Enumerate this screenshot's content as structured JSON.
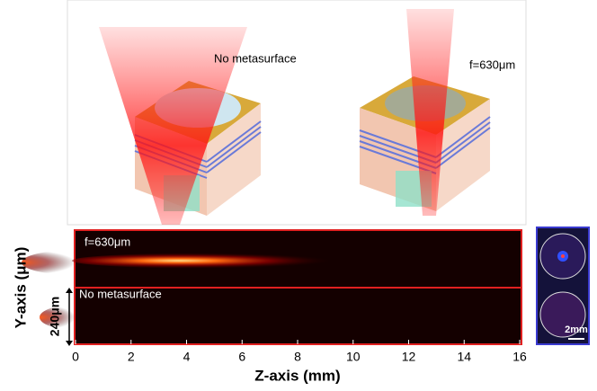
{
  "chart_data": {
    "type": "heatmap",
    "illustration_labels": [
      "No metasurface",
      "f=630μm"
    ],
    "panel_labels": [
      "f=630μm",
      "No metasurface"
    ],
    "xlabel": "Z-axis (mm)",
    "ylabel": "Y-axis (μm)",
    "scale_label": "240μm",
    "inset_scale_label": "2mm",
    "xlim": [
      0,
      16
    ],
    "xticks": [
      0,
      2,
      4,
      6,
      8,
      10,
      12,
      14,
      16
    ]
  }
}
